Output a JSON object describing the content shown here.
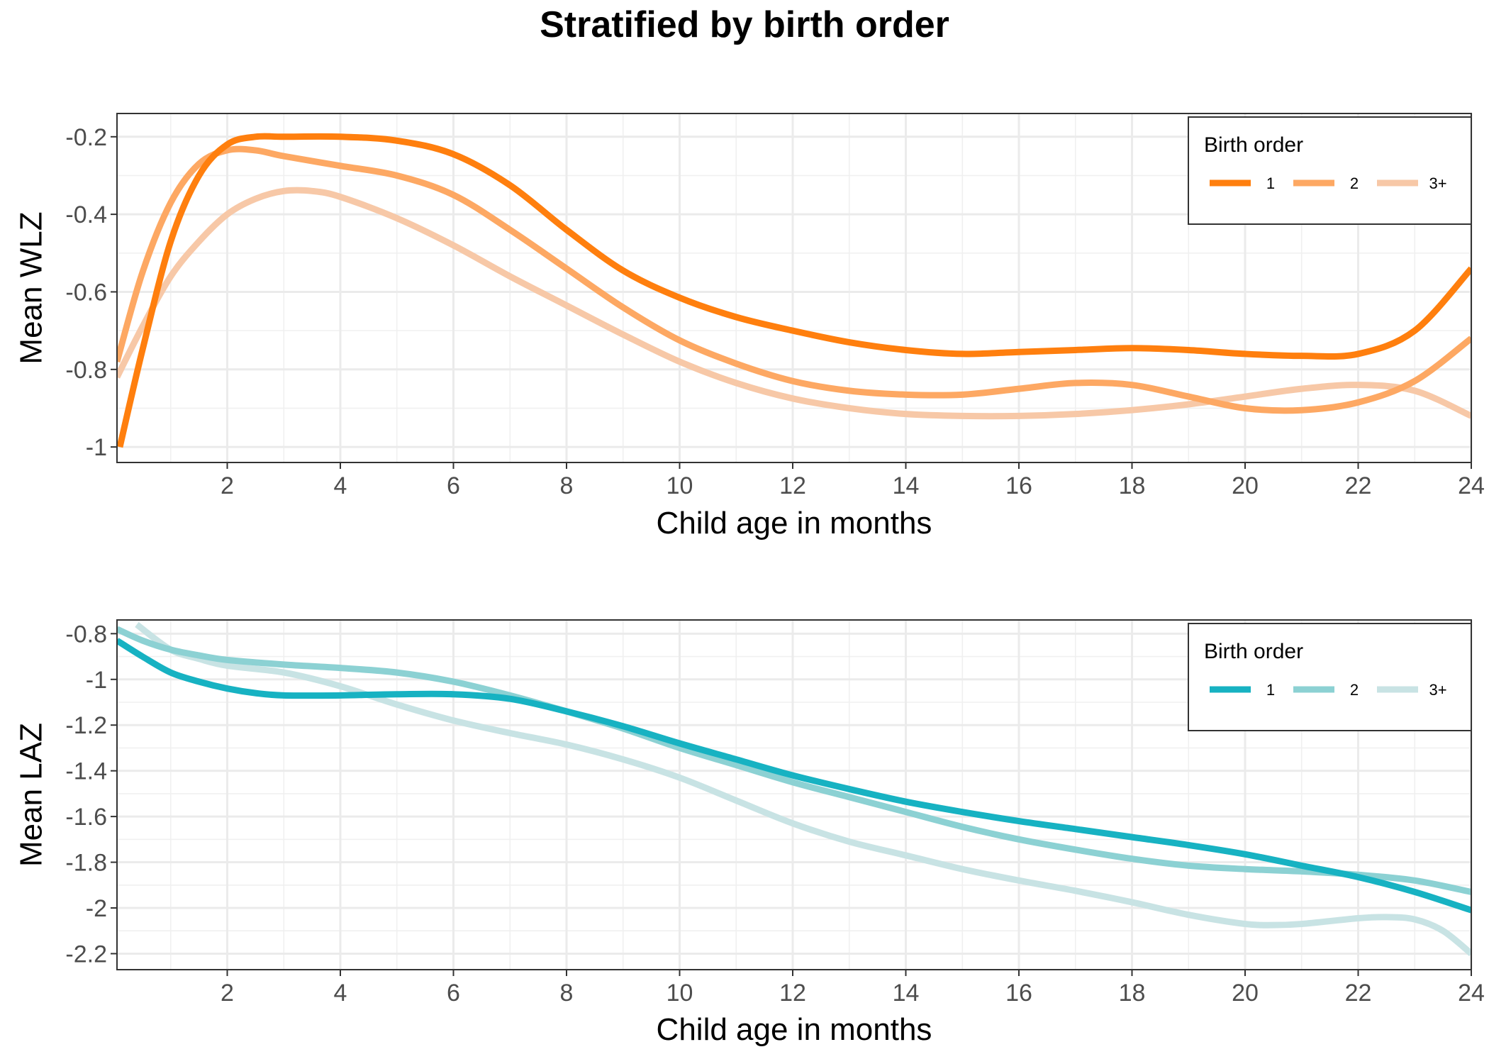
{
  "title": "Stratified by birth order",
  "chart_data": [
    {
      "type": "line",
      "xlabel": "Child age in months",
      "ylabel": "Mean WLZ",
      "xlim": [
        0.05,
        24
      ],
      "ylim": [
        -1.04,
        -0.14
      ],
      "x_ticks": [
        2,
        4,
        6,
        8,
        10,
        12,
        14,
        16,
        18,
        20,
        22,
        24
      ],
      "y_ticks": [
        -1,
        -0.8,
        -0.6,
        -0.4,
        -0.2
      ],
      "y_tick_labels": [
        "-1",
        "-0.8",
        "-0.6",
        "-0.4",
        "-0.2"
      ],
      "grid": true,
      "legend": {
        "title": "Birth order",
        "position": "top-right"
      },
      "series": [
        {
          "name": "1",
          "color": "#FF7F0E",
          "x": [
            0.1,
            0.5,
            1,
            1.5,
            2,
            2.5,
            3,
            4,
            5,
            6,
            7,
            8,
            9,
            10,
            11,
            12,
            13,
            14,
            15,
            16,
            17,
            18,
            19,
            20,
            21,
            22,
            23,
            24
          ],
          "y": [
            -1.0,
            -0.75,
            -0.47,
            -0.3,
            -0.22,
            -0.2,
            -0.2,
            -0.2,
            -0.21,
            -0.245,
            -0.325,
            -0.44,
            -0.545,
            -0.615,
            -0.665,
            -0.7,
            -0.73,
            -0.75,
            -0.76,
            -0.755,
            -0.75,
            -0.745,
            -0.75,
            -0.76,
            -0.765,
            -0.76,
            -0.7,
            -0.54
          ]
        },
        {
          "name": "2",
          "color": "#FDA863",
          "x": [
            0.05,
            0.5,
            1,
            1.5,
            2,
            2.5,
            3,
            4,
            5,
            6,
            7,
            8,
            9,
            10,
            11,
            12,
            13,
            14,
            15,
            16,
            17,
            18,
            19,
            20,
            21,
            22,
            23,
            24
          ],
          "y": [
            -0.78,
            -0.55,
            -0.37,
            -0.27,
            -0.235,
            -0.235,
            -0.25,
            -0.275,
            -0.3,
            -0.35,
            -0.44,
            -0.54,
            -0.64,
            -0.725,
            -0.785,
            -0.83,
            -0.855,
            -0.865,
            -0.865,
            -0.85,
            -0.835,
            -0.84,
            -0.87,
            -0.9,
            -0.905,
            -0.885,
            -0.83,
            -0.72
          ]
        },
        {
          "name": "3+",
          "color": "#F7C8A7",
          "x": [
            0.05,
            0.5,
            1,
            1.5,
            2,
            2.5,
            3,
            3.5,
            4,
            5,
            6,
            7,
            8,
            9,
            10,
            11,
            12,
            13,
            14,
            15,
            16,
            17,
            18,
            19,
            20,
            21,
            22,
            23,
            24
          ],
          "y": [
            -0.82,
            -0.69,
            -0.56,
            -0.47,
            -0.4,
            -0.36,
            -0.34,
            -0.34,
            -0.355,
            -0.41,
            -0.48,
            -0.56,
            -0.635,
            -0.71,
            -0.78,
            -0.835,
            -0.875,
            -0.9,
            -0.915,
            -0.92,
            -0.92,
            -0.915,
            -0.905,
            -0.89,
            -0.87,
            -0.85,
            -0.84,
            -0.855,
            -0.92
          ]
        }
      ]
    },
    {
      "type": "line",
      "xlabel": "Child age in months",
      "ylabel": "Mean LAZ",
      "xlim": [
        0.05,
        24
      ],
      "ylim": [
        -2.27,
        -0.74
      ],
      "x_ticks": [
        2,
        4,
        6,
        8,
        10,
        12,
        14,
        16,
        18,
        20,
        22,
        24
      ],
      "y_ticks": [
        -2.2,
        -2,
        -1.8,
        -1.6,
        -1.4,
        -1.2,
        -1,
        -0.8
      ],
      "y_tick_labels": [
        "-2.2",
        "-2",
        "-1.8",
        "-1.6",
        "-1.4",
        "-1.2",
        "-1",
        "-0.8"
      ],
      "grid": true,
      "legend": {
        "title": "Birth order",
        "position": "top-right"
      },
      "series": [
        {
          "name": "1",
          "color": "#17B2C2",
          "x": [
            0.05,
            0.5,
            1,
            1.5,
            2,
            2.5,
            3,
            4,
            5,
            6,
            7,
            8,
            9,
            10,
            11,
            12,
            13,
            14,
            15,
            16,
            17,
            18,
            19,
            20,
            21,
            22,
            23,
            24
          ],
          "y": [
            -0.83,
            -0.9,
            -0.97,
            -1.01,
            -1.04,
            -1.06,
            -1.07,
            -1.07,
            -1.065,
            -1.065,
            -1.085,
            -1.14,
            -1.205,
            -1.28,
            -1.35,
            -1.42,
            -1.48,
            -1.535,
            -1.58,
            -1.62,
            -1.655,
            -1.69,
            -1.725,
            -1.765,
            -1.815,
            -1.865,
            -1.93,
            -2.01
          ]
        },
        {
          "name": "2",
          "color": "#8CD1D3",
          "x": [
            0.05,
            0.5,
            1,
            1.5,
            2,
            3,
            4,
            5,
            6,
            7,
            8,
            9,
            10,
            11,
            12,
            13,
            14,
            15,
            16,
            17,
            18,
            19,
            20,
            21,
            22,
            23,
            24
          ],
          "y": [
            -0.78,
            -0.83,
            -0.87,
            -0.895,
            -0.915,
            -0.935,
            -0.95,
            -0.97,
            -1.01,
            -1.07,
            -1.14,
            -1.215,
            -1.3,
            -1.375,
            -1.45,
            -1.515,
            -1.58,
            -1.645,
            -1.7,
            -1.745,
            -1.785,
            -1.815,
            -1.83,
            -1.84,
            -1.855,
            -1.88,
            -1.93
          ]
        },
        {
          "name": "3+",
          "color": "#C8E3E4",
          "x": [
            0.4,
            1,
            1.5,
            2,
            3,
            4,
            5,
            6,
            7,
            8,
            9,
            10,
            11,
            12,
            13,
            14,
            15,
            16,
            17,
            18,
            19,
            20,
            20.5,
            21,
            22,
            22.5,
            23,
            23.5,
            24
          ],
          "y": [
            -0.76,
            -0.87,
            -0.91,
            -0.94,
            -0.97,
            -1.03,
            -1.11,
            -1.18,
            -1.235,
            -1.285,
            -1.35,
            -1.43,
            -1.53,
            -1.63,
            -1.71,
            -1.77,
            -1.83,
            -1.88,
            -1.925,
            -1.975,
            -2.03,
            -2.07,
            -2.075,
            -2.07,
            -2.045,
            -2.04,
            -2.05,
            -2.1,
            -2.2
          ]
        }
      ]
    }
  ]
}
